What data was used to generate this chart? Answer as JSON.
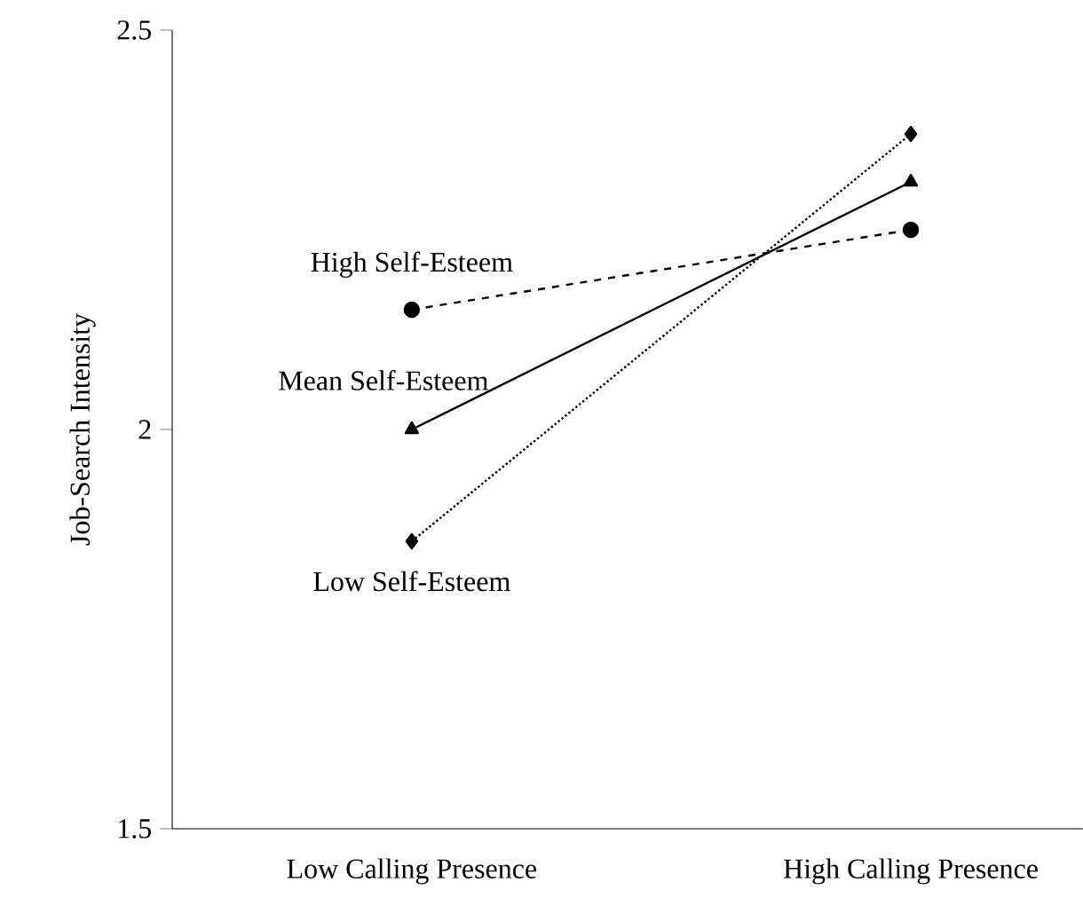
{
  "chart_data": {
    "type": "line",
    "ylabel": "Job-Search Intensity",
    "categories": [
      "Low Calling Presence",
      "High Calling Presence"
    ],
    "ylim": [
      1.5,
      2.5
    ],
    "yticks": [
      1.5,
      2,
      2.5
    ],
    "series": [
      {
        "name": "High Self-Esteem",
        "color": "#000000",
        "values": [
          2.15,
          2.25
        ],
        "marker": "circle",
        "line_style": "dashed"
      },
      {
        "name": "Mean Self-Esteem",
        "color": "#000000",
        "values": [
          2.0,
          2.31
        ],
        "marker": "triangle",
        "line_style": "solid"
      },
      {
        "name": "Low Self-Esteem",
        "color": "#000000",
        "values": [
          1.86,
          2.37
        ],
        "marker": "diamond",
        "line_style": "dotted"
      }
    ]
  }
}
